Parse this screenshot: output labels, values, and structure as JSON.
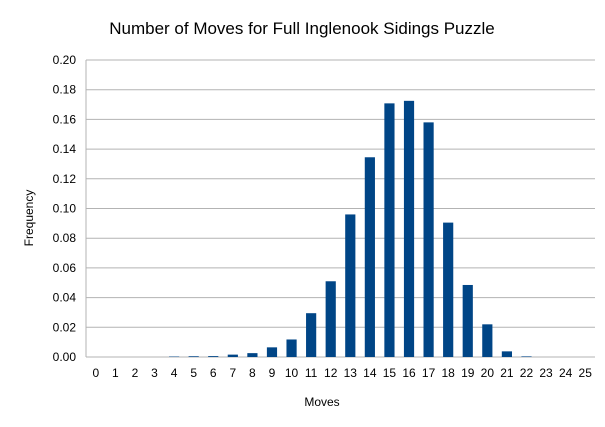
{
  "chart_data": {
    "type": "bar",
    "title": "Number of Moves for Full Inglenook Sidings Puzzle",
    "xlabel": "Moves",
    "ylabel": "Frequency",
    "categories": [
      "0",
      "1",
      "2",
      "3",
      "4",
      "5",
      "6",
      "7",
      "8",
      "9",
      "10",
      "11",
      "12",
      "13",
      "14",
      "15",
      "16",
      "17",
      "18",
      "19",
      "20",
      "21",
      "22",
      "23",
      "24",
      "25"
    ],
    "values": [
      0,
      0,
      0,
      0,
      0.0003,
      0.0005,
      0.0006,
      0.0016,
      0.0026,
      0.0065,
      0.0118,
      0.0295,
      0.051,
      0.096,
      0.1345,
      0.1708,
      0.1725,
      0.158,
      0.0905,
      0.0485,
      0.022,
      0.0038,
      0.0004,
      0,
      0,
      0
    ],
    "ylim": [
      0,
      0.2
    ],
    "yticks": [
      "0.00",
      "0.02",
      "0.04",
      "0.06",
      "0.08",
      "0.10",
      "0.12",
      "0.14",
      "0.16",
      "0.18",
      "0.20"
    ],
    "grid": true,
    "legend": "none",
    "bar_color": "#004586",
    "grid_color": "#b3b3b3"
  }
}
